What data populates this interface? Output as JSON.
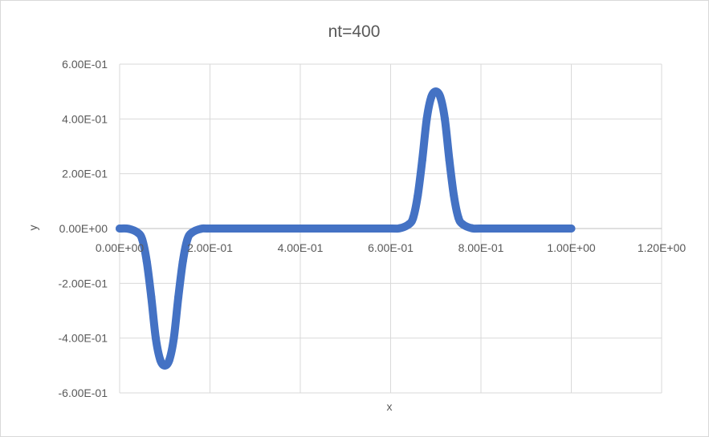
{
  "chart_data": {
    "type": "scatter",
    "title": "nt=400",
    "xlabel": "x",
    "ylabel": "y",
    "xlim": [
      0,
      1.2
    ],
    "ylim": [
      -0.6,
      0.6
    ],
    "x_ticks": [
      0,
      0.2,
      0.4,
      0.6,
      0.8,
      1.0,
      1.2
    ],
    "x_tick_labels": [
      "0.00E+00",
      "2.00E-01",
      "4.00E-01",
      "6.00E-01",
      "8.00E-01",
      "1.00E+00",
      "1.20E+00"
    ],
    "y_ticks": [
      0.6,
      0.4,
      0.2,
      0.0,
      -0.2,
      -0.4,
      -0.6
    ],
    "y_tick_labels": [
      "6.00E-01",
      "4.00E-01",
      "2.00E-01",
      "0.00E+00",
      "-2.00E-01",
      "-4.00E-01",
      "-6.00E-01"
    ],
    "grid": true,
    "legend": "none",
    "series": [
      {
        "color": "#4472c4",
        "x": [
          0.0,
          0.02,
          0.04,
          0.05,
          0.06,
          0.07,
          0.08,
          0.09,
          0.1,
          0.11,
          0.12,
          0.13,
          0.14,
          0.15,
          0.16,
          0.18,
          0.2,
          0.3,
          0.4,
          0.5,
          0.6,
          0.62,
          0.64,
          0.65,
          0.66,
          0.67,
          0.68,
          0.69,
          0.7,
          0.71,
          0.72,
          0.73,
          0.74,
          0.75,
          0.76,
          0.78,
          0.8,
          0.9,
          1.0
        ],
        "y": [
          0.0,
          -0.001,
          -0.015,
          -0.04,
          -0.12,
          -0.25,
          -0.4,
          -0.48,
          -0.5,
          -0.48,
          -0.4,
          -0.25,
          -0.12,
          -0.04,
          -0.015,
          -0.001,
          0.0,
          0.0,
          0.0,
          0.0,
          0.0,
          0.001,
          0.015,
          0.04,
          0.12,
          0.25,
          0.4,
          0.48,
          0.5,
          0.48,
          0.4,
          0.25,
          0.12,
          0.04,
          0.015,
          0.001,
          0.0,
          0.0,
          0.0
        ]
      }
    ]
  }
}
